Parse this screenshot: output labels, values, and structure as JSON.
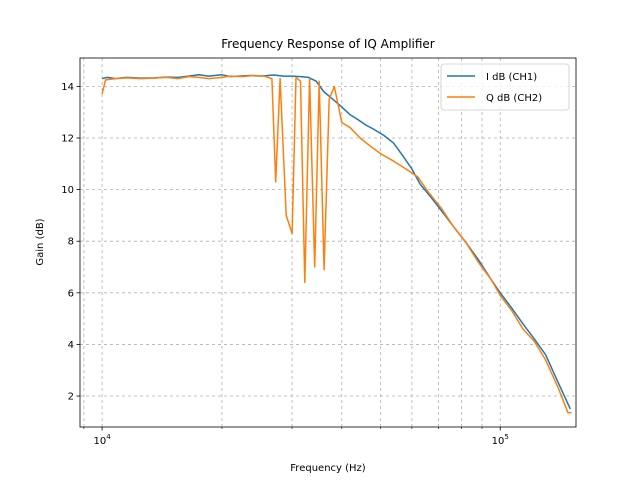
{
  "chart_data": {
    "type": "line",
    "title": "Frequency Response of IQ Amplifier",
    "xlabel": "Frequency (Hz)",
    "ylabel": "Gain (dB)",
    "xscale": "log",
    "xlim": [
      8800,
      155000
    ],
    "ylim": [
      0.8,
      15.1
    ],
    "x_major_ticks": [
      10000,
      100000
    ],
    "x_major_tick_labels": [
      {
        "base": "10",
        "exp": "4"
      },
      {
        "base": "10",
        "exp": "5"
      }
    ],
    "y_ticks": [
      2,
      4,
      6,
      8,
      10,
      12,
      14
    ],
    "y_tick_labels": [
      "2",
      "4",
      "6",
      "8",
      "10",
      "12",
      "14"
    ],
    "grid": true,
    "grid_style": "dashed",
    "legend_position": "top-right",
    "series": [
      {
        "name": "I dB (CH1)",
        "color": "#1f77b4",
        "points": [
          [
            10000,
            14.3
          ],
          [
            10300,
            14.35
          ],
          [
            10800,
            14.3
          ],
          [
            11500,
            14.35
          ],
          [
            12500,
            14.32
          ],
          [
            13500,
            14.33
          ],
          [
            14500,
            14.36
          ],
          [
            15500,
            14.35
          ],
          [
            16500,
            14.4
          ],
          [
            17500,
            14.45
          ],
          [
            18500,
            14.4
          ],
          [
            20000,
            14.45
          ],
          [
            21000,
            14.38
          ],
          [
            22000,
            14.4
          ],
          [
            23500,
            14.42
          ],
          [
            25000,
            14.4
          ],
          [
            27000,
            14.44
          ],
          [
            28500,
            14.4
          ],
          [
            30000,
            14.4
          ],
          [
            31500,
            14.38
          ],
          [
            33000,
            14.35
          ],
          [
            34500,
            14.2
          ],
          [
            36000,
            13.8
          ],
          [
            38000,
            13.5
          ],
          [
            40000,
            13.2
          ],
          [
            42000,
            12.9
          ],
          [
            44000,
            12.7
          ],
          [
            46000,
            12.5
          ],
          [
            48000,
            12.35
          ],
          [
            51000,
            12.1
          ],
          [
            54000,
            11.8
          ],
          [
            57000,
            11.3
          ],
          [
            60000,
            10.8
          ],
          [
            63000,
            10.2
          ],
          [
            67000,
            9.7
          ],
          [
            71000,
            9.2
          ],
          [
            76000,
            8.6
          ],
          [
            82000,
            7.95
          ],
          [
            88000,
            7.3
          ],
          [
            95000,
            6.5
          ],
          [
            100000,
            6.0
          ],
          [
            107000,
            5.4
          ],
          [
            114000,
            4.8
          ],
          [
            122000,
            4.2
          ],
          [
            130000,
            3.6
          ],
          [
            140000,
            2.5
          ],
          [
            150000,
            1.5
          ]
        ]
      },
      {
        "name": "Q dB (CH2)",
        "color": "#ff7f0e",
        "points": [
          [
            10000,
            13.7
          ],
          [
            10200,
            14.25
          ],
          [
            10800,
            14.3
          ],
          [
            11500,
            14.33
          ],
          [
            12500,
            14.3
          ],
          [
            13500,
            14.32
          ],
          [
            14500,
            14.35
          ],
          [
            15500,
            14.3
          ],
          [
            16500,
            14.38
          ],
          [
            17500,
            14.35
          ],
          [
            18500,
            14.3
          ],
          [
            20000,
            14.35
          ],
          [
            21000,
            14.4
          ],
          [
            22500,
            14.38
          ],
          [
            24000,
            14.42
          ],
          [
            25500,
            14.4
          ],
          [
            26700,
            14.3
          ],
          [
            27300,
            10.3
          ],
          [
            28000,
            14.3
          ],
          [
            29000,
            9.0
          ],
          [
            30000,
            8.3
          ],
          [
            30700,
            14.35
          ],
          [
            31500,
            14.2
          ],
          [
            32300,
            6.4
          ],
          [
            33200,
            14.3
          ],
          [
            34200,
            7.0
          ],
          [
            35100,
            14.2
          ],
          [
            36100,
            6.9
          ],
          [
            37200,
            13.5
          ],
          [
            38300,
            14.0
          ],
          [
            40000,
            12.6
          ],
          [
            42000,
            12.4
          ],
          [
            44500,
            12.0
          ],
          [
            47000,
            11.7
          ],
          [
            50000,
            11.4
          ],
          [
            54000,
            11.1
          ],
          [
            58000,
            10.8
          ],
          [
            62000,
            10.5
          ],
          [
            66000,
            9.9
          ],
          [
            71000,
            9.3
          ],
          [
            76000,
            8.6
          ],
          [
            82000,
            7.95
          ],
          [
            88000,
            7.2
          ],
          [
            95000,
            6.5
          ],
          [
            100000,
            5.9
          ],
          [
            107000,
            5.3
          ],
          [
            114000,
            4.6
          ],
          [
            122000,
            4.1
          ],
          [
            130000,
            3.4
          ],
          [
            140000,
            2.3
          ],
          [
            148000,
            1.35
          ],
          [
            151000,
            1.35
          ]
        ]
      }
    ]
  }
}
